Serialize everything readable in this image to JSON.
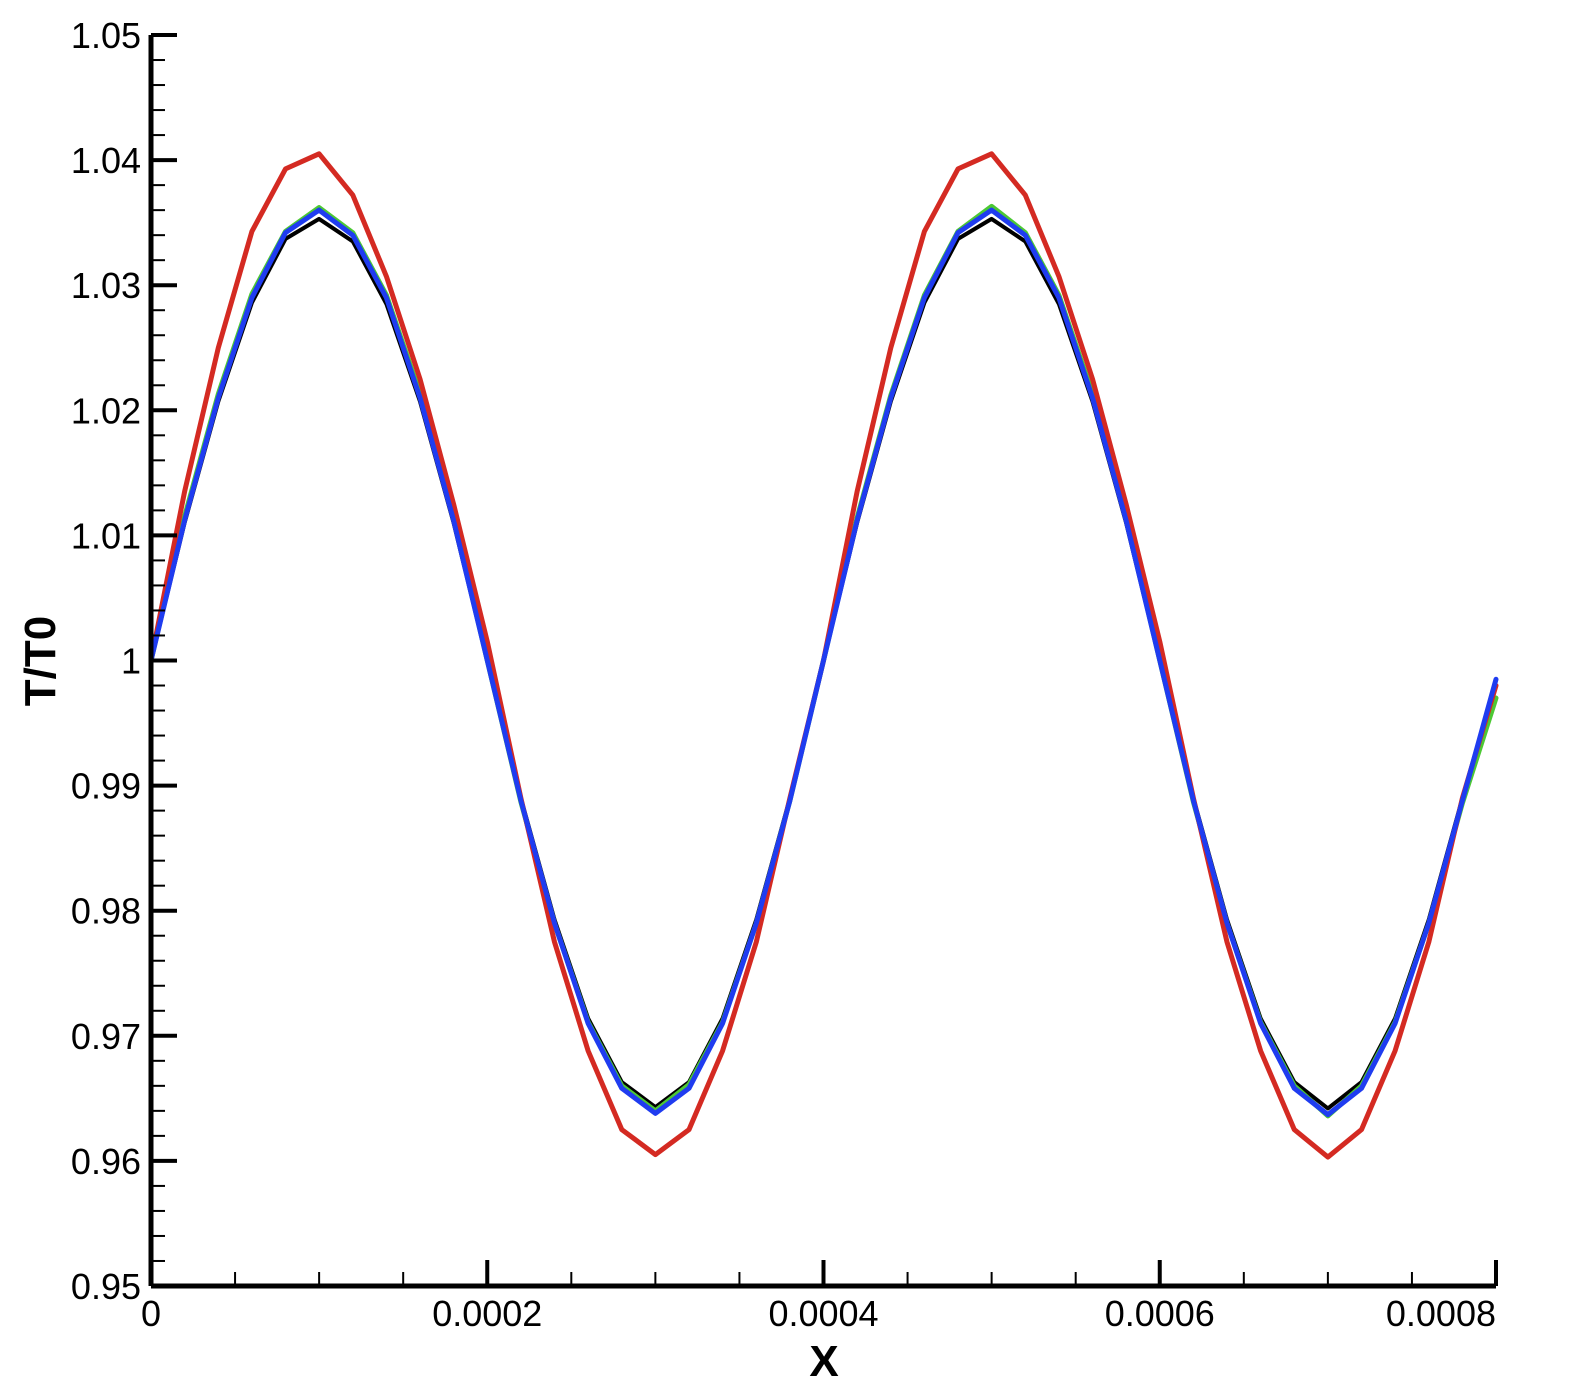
{
  "chart_data": {
    "type": "line",
    "title": "",
    "xlabel": "X",
    "ylabel": "T/T0",
    "xlim": [
      0,
      0.0008
    ],
    "ylim": [
      0.95,
      1.05
    ],
    "xticks": [
      "0",
      "0.0002",
      "0.0004",
      "0.0006",
      "0.0008"
    ],
    "xtick_values": [
      0,
      0.0002,
      0.0004,
      0.0006,
      0.0008
    ],
    "yticks": [
      "0.95",
      "0.96",
      "0.97",
      "0.98",
      "0.99",
      "1",
      "1.01",
      "1.02",
      "1.03",
      "1.04",
      "1.05"
    ],
    "ytick_values": [
      0.95,
      0.96,
      0.97,
      0.98,
      0.99,
      1.0,
      1.01,
      1.02,
      1.03,
      1.04,
      1.05
    ],
    "grid": false,
    "legend": "none",
    "series": [
      {
        "color": "#000000",
        "x": [
          0,
          2e-05,
          4e-05,
          6e-05,
          8e-05,
          0.0001,
          0.00012,
          0.00014,
          0.00016,
          0.00018,
          0.0002,
          0.00022,
          0.00024,
          0.00026,
          0.00028,
          0.0003,
          0.00032,
          0.00034,
          0.00036,
          0.00038,
          0.0004,
          0.00042,
          0.00044,
          0.00046,
          0.00048,
          0.0005,
          0.00052,
          0.00054,
          0.00056,
          0.00058,
          0.0006,
          0.00062,
          0.00064,
          0.00066,
          0.00068,
          0.0007,
          0.00072,
          0.00074,
          0.00076,
          0.00078,
          0.0008
        ],
        "y": [
          1.0,
          1.011,
          1.0207,
          1.0286,
          1.0337,
          1.0353,
          1.0335,
          1.0285,
          1.0207,
          1.011,
          1.0,
          0.989,
          0.9793,
          0.9714,
          0.9663,
          0.9643,
          0.9663,
          0.9714,
          0.9793,
          0.989,
          1.0,
          1.011,
          1.0207,
          1.0286,
          1.0337,
          1.0353,
          1.0335,
          1.0285,
          1.0207,
          1.011,
          1.0,
          0.989,
          0.9793,
          0.9714,
          0.9663,
          0.9642,
          0.9663,
          0.9714,
          0.9793,
          0.989,
          0.998
        ]
      },
      {
        "color": "#4cc834",
        "x": [
          0,
          2e-05,
          4e-05,
          6e-05,
          8e-05,
          0.0001,
          0.00012,
          0.00014,
          0.00016,
          0.00018,
          0.0002,
          0.00022,
          0.00024,
          0.00026,
          0.00028,
          0.0003,
          0.00032,
          0.00034,
          0.00036,
          0.00038,
          0.0004,
          0.00042,
          0.00044,
          0.00046,
          0.00048,
          0.0005,
          0.00052,
          0.00054,
          0.00056,
          0.00058,
          0.0006,
          0.00062,
          0.00064,
          0.00066,
          0.00068,
          0.0007,
          0.00072,
          0.00074,
          0.00076,
          0.00078,
          0.0008
        ],
        "y": [
          1.0,
          1.0115,
          1.0213,
          1.0293,
          1.0343,
          1.0362,
          1.0342,
          1.0292,
          1.0213,
          1.0114,
          1.0,
          0.9887,
          0.979,
          0.9711,
          0.966,
          0.964,
          0.9661,
          0.9711,
          0.979,
          0.9888,
          1.0,
          1.0114,
          1.0212,
          1.0292,
          1.0343,
          1.0363,
          1.0342,
          1.0292,
          1.0213,
          1.0114,
          1.0,
          0.9887,
          0.979,
          0.9711,
          0.966,
          0.9636,
          0.966,
          0.9711,
          0.979,
          0.9886,
          0.997
        ]
      },
      {
        "color": "#d42a22",
        "x": [
          0,
          2e-05,
          4e-05,
          6e-05,
          8e-05,
          0.0001,
          0.00012,
          0.00014,
          0.00016,
          0.00018,
          0.0002,
          0.00022,
          0.00024,
          0.00026,
          0.00028,
          0.0003,
          0.00032,
          0.00034,
          0.00036,
          0.00038,
          0.0004,
          0.00042,
          0.00044,
          0.00046,
          0.00048,
          0.0005,
          0.00052,
          0.00054,
          0.00056,
          0.00058,
          0.0006,
          0.00062,
          0.00064,
          0.00066,
          0.00068,
          0.0007,
          0.00072,
          0.00074,
          0.00076,
          0.00078,
          0.0008
        ],
        "y": [
          1.0,
          1.0135,
          1.025,
          1.0343,
          1.0393,
          1.0405,
          1.0372,
          1.0307,
          1.0225,
          1.0125,
          1.0015,
          0.989,
          0.9775,
          0.9688,
          0.9625,
          0.9605,
          0.9625,
          0.9688,
          0.9775,
          0.989,
          1.0,
          1.0135,
          1.025,
          1.0343,
          1.0393,
          1.0405,
          1.0372,
          1.0307,
          1.0225,
          1.0125,
          1.0015,
          0.989,
          0.9775,
          0.9688,
          0.9625,
          0.9603,
          0.9625,
          0.9688,
          0.9775,
          0.989,
          0.998
        ]
      },
      {
        "color": "#1f3cf0",
        "x": [
          0,
          2e-05,
          4e-05,
          6e-05,
          8e-05,
          0.0001,
          0.00012,
          0.00014,
          0.00016,
          0.00018,
          0.0002,
          0.00022,
          0.00024,
          0.00026,
          0.00028,
          0.0003,
          0.00032,
          0.00034,
          0.00036,
          0.00038,
          0.0004,
          0.00042,
          0.00044,
          0.00046,
          0.00048,
          0.0005,
          0.00052,
          0.00054,
          0.00056,
          0.00058,
          0.0006,
          0.00062,
          0.00064,
          0.00066,
          0.00068,
          0.0007,
          0.00072,
          0.00074,
          0.00076,
          0.00078,
          0.0008
        ],
        "y": [
          1.0,
          1.0112,
          1.021,
          1.029,
          1.0342,
          1.036,
          1.034,
          1.029,
          1.021,
          1.0112,
          1.0,
          0.9888,
          0.979,
          0.971,
          0.9658,
          0.9638,
          0.9658,
          0.971,
          0.979,
          0.9888,
          1.0,
          1.0112,
          1.021,
          1.029,
          1.0342,
          1.036,
          1.034,
          1.029,
          1.021,
          1.0112,
          1.0,
          0.9888,
          0.979,
          0.971,
          0.9658,
          0.9637,
          0.9658,
          0.971,
          0.979,
          0.9888,
          0.9985
        ]
      }
    ]
  }
}
